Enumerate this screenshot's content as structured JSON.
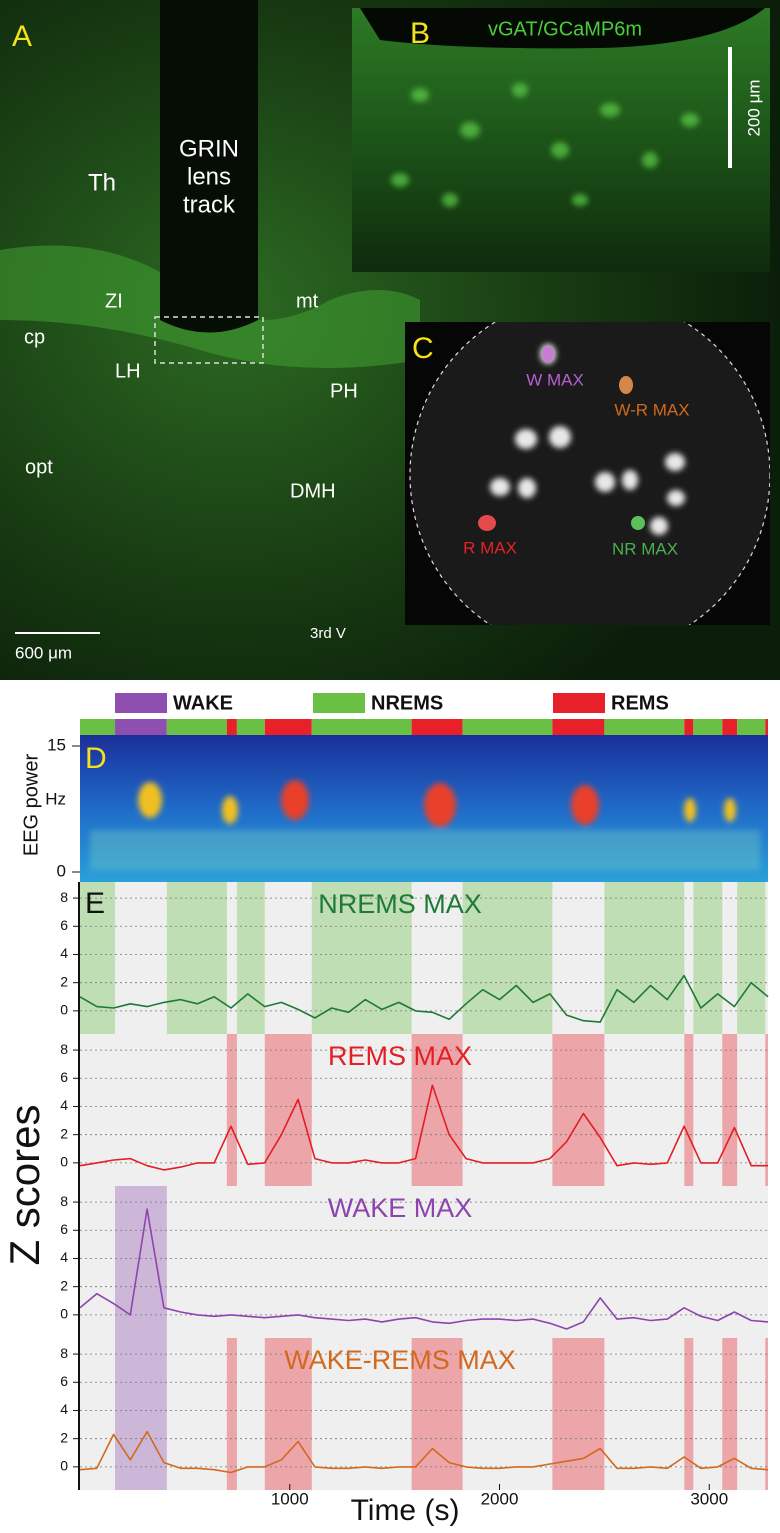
{
  "panel_a": {
    "letter": "A",
    "lens_label": [
      "GRIN",
      "lens",
      "track"
    ],
    "regions": [
      "Th",
      "ZI",
      "mt",
      "cp",
      "LH",
      "PH",
      "opt",
      "DMH",
      "3rd V"
    ],
    "scale": "600 μm"
  },
  "panel_b": {
    "letter": "B",
    "title": "vGAT/GCaMP6m",
    "scale": "200 μm"
  },
  "panel_c": {
    "letter": "C",
    "rois": [
      "W MAX",
      "W-R MAX",
      "R MAX",
      "NR MAX"
    ]
  },
  "eeg": {
    "letter": "D",
    "ylabel": "EEG power",
    "unit": "Hz",
    "ylim": [
      0,
      15
    ],
    "yticks": [
      0,
      15
    ]
  },
  "chart_data": {
    "type": "line",
    "letter": "E",
    "xlabel": "Time (s)",
    "ylabel": "Z scores",
    "xlim": [
      0,
      3280
    ],
    "xticks": [
      1000,
      2000,
      3000
    ],
    "ylim": [
      -1.5,
      9
    ],
    "yticks": [
      0,
      2,
      4,
      6,
      8
    ],
    "grid": true,
    "states_legend": [
      {
        "name": "WAKE",
        "color": "#8e4fb0"
      },
      {
        "name": "NREMS",
        "color": "#6abf45"
      },
      {
        "name": "REMS",
        "color": "#e8202a"
      }
    ],
    "states": [
      {
        "state": "NREMS",
        "start": 0,
        "end": 167
      },
      {
        "state": "WAKE",
        "start": 167,
        "end": 414
      },
      {
        "state": "NREMS",
        "start": 414,
        "end": 700
      },
      {
        "state": "REMS",
        "start": 700,
        "end": 748
      },
      {
        "state": "NREMS",
        "start": 748,
        "end": 881
      },
      {
        "state": "REMS",
        "start": 881,
        "end": 1105
      },
      {
        "state": "NREMS",
        "start": 1105,
        "end": 1581
      },
      {
        "state": "REMS",
        "start": 1581,
        "end": 1824
      },
      {
        "state": "NREMS",
        "start": 1824,
        "end": 2252
      },
      {
        "state": "REMS",
        "start": 2252,
        "end": 2500
      },
      {
        "state": "NREMS",
        "start": 2500,
        "end": 2881
      },
      {
        "state": "REMS",
        "start": 2881,
        "end": 2924
      },
      {
        "state": "NREMS",
        "start": 2924,
        "end": 3062
      },
      {
        "state": "REMS",
        "start": 3062,
        "end": 3133
      },
      {
        "state": "NREMS",
        "start": 3133,
        "end": 3267
      },
      {
        "state": "REMS",
        "start": 3267,
        "end": 3280
      }
    ],
    "x": [
      0,
      80,
      160,
      240,
      320,
      400,
      480,
      560,
      640,
      720,
      800,
      880,
      960,
      1040,
      1120,
      1200,
      1280,
      1360,
      1440,
      1520,
      1600,
      1680,
      1760,
      1840,
      1920,
      2000,
      2080,
      2160,
      2240,
      2320,
      2400,
      2480,
      2560,
      2640,
      2720,
      2800,
      2880,
      2960,
      3040,
      3120,
      3200,
      3280
    ],
    "series": [
      {
        "name": "NREMS MAX",
        "color": "#1f7a35",
        "shade": [
          "NREMS"
        ],
        "values": [
          1,
          0.3,
          0.2,
          0.5,
          0.3,
          0.6,
          0.8,
          0.5,
          1.0,
          0.2,
          1.2,
          0.3,
          0.6,
          0.1,
          -0.5,
          0.2,
          -0.1,
          0.8,
          0.1,
          0.6,
          0,
          -0.1,
          -0.6,
          0.5,
          1.5,
          0.8,
          1.8,
          0.6,
          1.2,
          -0.3,
          -0.7,
          -0.8,
          1.5,
          0.6,
          1.8,
          0.8,
          2.5,
          0.2,
          1.2,
          0.3,
          2.0,
          1.0
        ]
      },
      {
        "name": "REMS MAX",
        "color": "#e31e24",
        "shade": [
          "REMS"
        ],
        "values": [
          -0.2,
          0,
          0.2,
          0.3,
          -0.2,
          -0.5,
          -0.3,
          0,
          0,
          2.6,
          -0.1,
          0,
          2,
          4.5,
          0.3,
          0,
          0,
          0.2,
          0,
          0,
          0.3,
          5.5,
          2,
          0.3,
          0,
          0,
          0,
          0,
          0.3,
          1.5,
          3.5,
          1.8,
          -0.2,
          0,
          -0.1,
          0,
          2.6,
          0,
          0,
          2.5,
          -0.2,
          -0.2
        ]
      },
      {
        "name": "WAKE MAX",
        "color": "#8e44ad",
        "shade": [
          "WAKE"
        ],
        "values": [
          0.5,
          1.5,
          0.8,
          0,
          7.5,
          0.5,
          0.2,
          0,
          -0.1,
          0,
          -0.1,
          -0.2,
          -0.1,
          0,
          -0.2,
          -0.3,
          -0.4,
          -0.3,
          -0.5,
          -0.3,
          -0.2,
          -0.5,
          -0.6,
          -0.4,
          -0.3,
          -0.3,
          -0.4,
          -0.3,
          -0.6,
          -1,
          -0.5,
          1.2,
          -0.3,
          -0.2,
          -0.4,
          -0.3,
          0.5,
          -0.1,
          -0.4,
          0.2,
          -0.4,
          -0.5
        ]
      },
      {
        "name": "WAKE-REMS MAX",
        "color": "#d2691e",
        "shade": [
          "WAKE",
          "REMS"
        ],
        "values": [
          -0.2,
          -0.1,
          2.3,
          0.5,
          2.5,
          0.3,
          -0.1,
          -0.1,
          -0.2,
          -0.4,
          0,
          0,
          0.5,
          1.8,
          0,
          -0.1,
          -0.1,
          0,
          -0.1,
          0,
          0,
          1.3,
          0.3,
          0,
          -0.1,
          -0.1,
          0,
          0,
          0.2,
          0.4,
          0.6,
          1.3,
          -0.1,
          -0.1,
          0,
          -0.1,
          0.7,
          -0.1,
          0,
          0.6,
          -0.1,
          -0.2
        ]
      }
    ]
  }
}
